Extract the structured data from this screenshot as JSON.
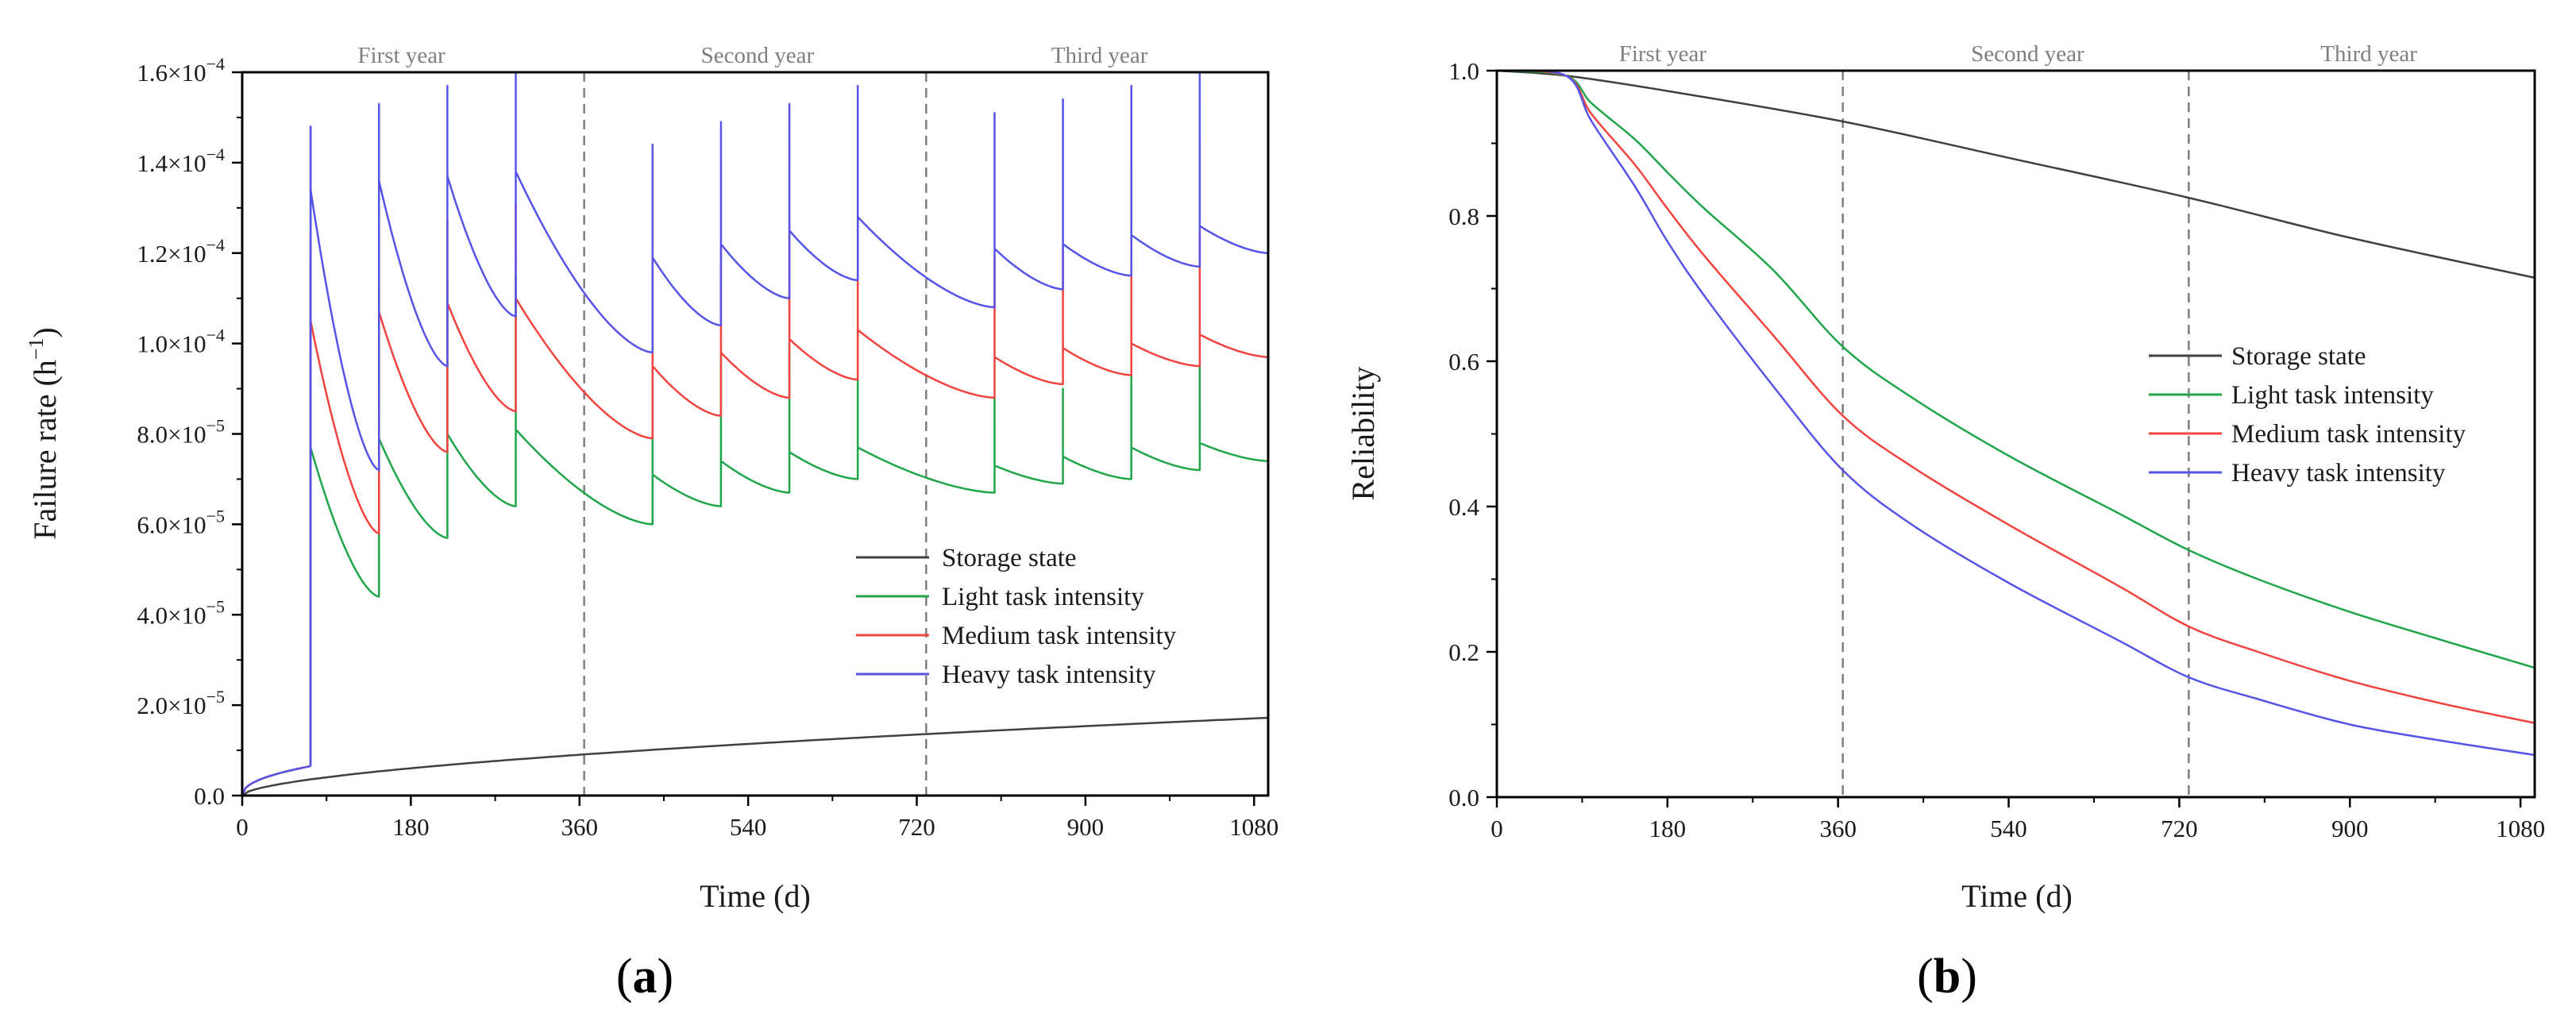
{
  "chart_data": [
    {
      "type": "line",
      "panel_label": {
        "open": "(",
        "letter": "a",
        "close": ")"
      },
      "xlabel": "Time (d)",
      "ylabel": "Failure rate (h",
      "ylabel_sup": "−1",
      "ylabel_close": ")",
      "xlim": [
        0,
        1095
      ],
      "ylim": [
        0,
        0.00016
      ],
      "xticks": [
        0,
        180,
        360,
        540,
        720,
        900,
        1080
      ],
      "xtick_labels": [
        "0",
        "180",
        "360",
        "540",
        "720",
        "900",
        "1080"
      ],
      "yticks": [
        0,
        2e-05,
        4e-05,
        6e-05,
        8e-05,
        0.0001,
        0.00012,
        0.00014,
        0.00016
      ],
      "ytick_labels": [
        {
          "mant": "0.0",
          "exp": ""
        },
        {
          "mant": "2.0×10",
          "exp": "−5"
        },
        {
          "mant": "4.0×10",
          "exp": "−5"
        },
        {
          "mant": "6.0×10",
          "exp": "−5"
        },
        {
          "mant": "8.0×10",
          "exp": "−5"
        },
        {
          "mant": "1.0×10",
          "exp": "−4"
        },
        {
          "mant": "1.2×10",
          "exp": "−4"
        },
        {
          "mant": "1.4×10",
          "exp": "−4"
        },
        {
          "mant": "1.6×10",
          "exp": "−4"
        }
      ],
      "year_lines": [
        365,
        730
      ],
      "year_labels": [
        {
          "text": "First year",
          "x": 170
        },
        {
          "text": "Second year",
          "x": 550
        },
        {
          "text": "Third year",
          "x": 915
        }
      ],
      "legend": {
        "position": "center-right",
        "entries": [
          "Storage state",
          "Light task intensity",
          "Medium task intensity",
          "Heavy task intensity"
        ]
      },
      "series": [
        {
          "name": "Storage state",
          "color": "#404040",
          "kind": "power",
          "points": [
            [
              0,
              0
            ],
            [
              75,
              6.5e-06
            ],
            [
              365,
              1.15e-05
            ],
            [
              730,
              1.48e-05
            ],
            [
              1095,
              1.72e-05
            ]
          ]
        },
        {
          "name": "Light task intensity",
          "color": "#1fa64a",
          "kind": "segments",
          "segments": [
            {
              "start": 73,
              "end": 146,
              "start_val": 7.7e-05,
              "end_val": 4.4e-05,
              "peak": 0.000118
            },
            {
              "start": 146,
              "end": 219,
              "start_val": 7.9e-05,
              "end_val": 5.7e-05,
              "peak": 0.000113
            },
            {
              "start": 219,
              "end": 292,
              "start_val": 8e-05,
              "end_val": 6.4e-05,
              "peak": 0.000114
            },
            {
              "start": 292,
              "end": 438,
              "start_val": 8.1e-05,
              "end_val": 6e-05,
              "peak": 0.000115
            },
            {
              "start": 438,
              "end": 511,
              "start_val": 7.1e-05,
              "end_val": 6.4e-05,
              "peak": 9.4e-05
            },
            {
              "start": 511,
              "end": 584,
              "start_val": 7.4e-05,
              "end_val": 6.7e-05,
              "peak": 9.7e-05
            },
            {
              "start": 584,
              "end": 657,
              "start_val": 7.6e-05,
              "end_val": 7e-05,
              "peak": 0.0001
            },
            {
              "start": 657,
              "end": 803,
              "start_val": 7.7e-05,
              "end_val": 6.7e-05,
              "peak": 0.000103
            },
            {
              "start": 803,
              "end": 876,
              "start_val": 7.3e-05,
              "end_val": 6.9e-05,
              "peak": 8.8e-05
            },
            {
              "start": 876,
              "end": 949,
              "start_val": 7.5e-05,
              "end_val": 7e-05,
              "peak": 9e-05
            },
            {
              "start": 949,
              "end": 1022,
              "start_val": 7.7e-05,
              "end_val": 7.2e-05,
              "peak": 9.3e-05
            },
            {
              "start": 1022,
              "end": 1095,
              "start_val": 7.8e-05,
              "end_val": 7.4e-05,
              "peak": 9.5e-05
            }
          ]
        },
        {
          "name": "Medium task intensity",
          "color": "#f2433f",
          "kind": "segments",
          "segments": [
            {
              "start": 73,
              "end": 146,
              "start_val": 0.000105,
              "end_val": 5.8e-05,
              "peak": 0.000123
            },
            {
              "start": 146,
              "end": 219,
              "start_val": 0.000107,
              "end_val": 7.6e-05,
              "peak": 0.000125
            },
            {
              "start": 219,
              "end": 292,
              "start_val": 0.000109,
              "end_val": 8.5e-05,
              "peak": 0.000127
            },
            {
              "start": 292,
              "end": 438,
              "start_val": 0.00011,
              "end_val": 7.9e-05,
              "peak": 0.000131
            },
            {
              "start": 438,
              "end": 511,
              "start_val": 9.5e-05,
              "end_val": 8.4e-05,
              "peak": 0.000119
            },
            {
              "start": 511,
              "end": 584,
              "start_val": 9.8e-05,
              "end_val": 8.8e-05,
              "peak": 0.000122
            },
            {
              "start": 584,
              "end": 657,
              "start_val": 0.000101,
              "end_val": 9.2e-05,
              "peak": 0.000126
            },
            {
              "start": 657,
              "end": 803,
              "start_val": 0.000103,
              "end_val": 8.8e-05,
              "peak": 0.000129
            },
            {
              "start": 803,
              "end": 876,
              "start_val": 9.7e-05,
              "end_val": 9.1e-05,
              "peak": 0.000119
            },
            {
              "start": 876,
              "end": 949,
              "start_val": 9.9e-05,
              "end_val": 9.3e-05,
              "peak": 0.000121
            },
            {
              "start": 949,
              "end": 1022,
              "start_val": 0.0001,
              "end_val": 9.5e-05,
              "peak": 0.000123
            },
            {
              "start": 1022,
              "end": 1095,
              "start_val": 0.000102,
              "end_val": 9.7e-05,
              "peak": 0.000125
            }
          ]
        },
        {
          "name": "Heavy task intensity",
          "color": "#5553e8",
          "kind": "segments",
          "segments": [
            {
              "start": 73,
              "end": 146,
              "start_val": 0.000134,
              "end_val": 7.2e-05,
              "peak": 0.000148
            },
            {
              "start": 146,
              "end": 219,
              "start_val": 0.000136,
              "end_val": 9.5e-05,
              "peak": 0.000153
            },
            {
              "start": 219,
              "end": 292,
              "start_val": 0.000137,
              "end_val": 0.000106,
              "peak": 0.000157
            },
            {
              "start": 292,
              "end": 438,
              "start_val": 0.000138,
              "end_val": 9.8e-05,
              "peak": 0.00016
            },
            {
              "start": 438,
              "end": 511,
              "start_val": 0.000119,
              "end_val": 0.000104,
              "peak": 0.000144
            },
            {
              "start": 511,
              "end": 584,
              "start_val": 0.000122,
              "end_val": 0.00011,
              "peak": 0.000149
            },
            {
              "start": 584,
              "end": 657,
              "start_val": 0.000125,
              "end_val": 0.000114,
              "peak": 0.000153
            },
            {
              "start": 657,
              "end": 803,
              "start_val": 0.000128,
              "end_val": 0.000108,
              "peak": 0.000157
            },
            {
              "start": 803,
              "end": 876,
              "start_val": 0.000121,
              "end_val": 0.000112,
              "peak": 0.000151
            },
            {
              "start": 876,
              "end": 949,
              "start_val": 0.000122,
              "end_val": 0.000115,
              "peak": 0.000154
            },
            {
              "start": 949,
              "end": 1022,
              "start_val": 0.000124,
              "end_val": 0.000117,
              "peak": 0.000157
            },
            {
              "start": 1022,
              "end": 1095,
              "start_val": 0.000126,
              "end_val": 0.00012,
              "peak": 0.00016
            }
          ]
        }
      ]
    },
    {
      "type": "line",
      "panel_label": {
        "open": "(",
        "letter": "b",
        "close": ")"
      },
      "xlabel": "Time (d)",
      "ylabel": "Reliability",
      "xlim": [
        0,
        1095
      ],
      "ylim": [
        0,
        1.0
      ],
      "xticks": [
        0,
        180,
        360,
        540,
        720,
        900,
        1080
      ],
      "xtick_labels": [
        "0",
        "180",
        "360",
        "540",
        "720",
        "900",
        "1080"
      ],
      "yticks": [
        0,
        0.2,
        0.4,
        0.6,
        0.8,
        1.0
      ],
      "ytick_labels": [
        "0.0",
        "0.2",
        "0.4",
        "0.6",
        "0.8",
        "1.0"
      ],
      "year_lines": [
        365,
        730
      ],
      "year_labels": [
        {
          "text": "First year",
          "x": 175
        },
        {
          "text": "Second year",
          "x": 560
        },
        {
          "text": "Third year",
          "x": 920
        }
      ],
      "legend": {
        "position": "center-right",
        "entries": [
          "Storage state",
          "Light task intensity",
          "Medium task intensity",
          "Heavy task intensity"
        ]
      },
      "series": [
        {
          "name": "Storage state",
          "color": "#404040",
          "points": [
            [
              0,
              1.0
            ],
            [
              73,
              0.993
            ],
            [
              180,
              0.972
            ],
            [
              365,
              0.93
            ],
            [
              540,
              0.88
            ],
            [
              730,
              0.825
            ],
            [
              900,
              0.77
            ],
            [
              1095,
              0.715
            ]
          ]
        },
        {
          "name": "Light task intensity",
          "color": "#1fa64a",
          "points": [
            [
              0,
              1.0
            ],
            [
              73,
              0.993
            ],
            [
              100,
              0.955
            ],
            [
              146,
              0.905
            ],
            [
              180,
              0.86
            ],
            [
              219,
              0.81
            ],
            [
              292,
              0.725
            ],
            [
              365,
              0.62
            ],
            [
              438,
              0.55
            ],
            [
              540,
              0.47
            ],
            [
              657,
              0.39
            ],
            [
              730,
              0.34
            ],
            [
              803,
              0.3
            ],
            [
              900,
              0.255
            ],
            [
              1000,
              0.215
            ],
            [
              1095,
              0.178
            ]
          ]
        },
        {
          "name": "Medium task intensity",
          "color": "#f2433f",
          "points": [
            [
              0,
              1.0
            ],
            [
              73,
              0.993
            ],
            [
              100,
              0.94
            ],
            [
              146,
              0.87
            ],
            [
              180,
              0.81
            ],
            [
              219,
              0.745
            ],
            [
              292,
              0.635
            ],
            [
              365,
              0.525
            ],
            [
              438,
              0.455
            ],
            [
              540,
              0.375
            ],
            [
              657,
              0.29
            ],
            [
              730,
              0.235
            ],
            [
              803,
              0.2
            ],
            [
              900,
              0.16
            ],
            [
              1000,
              0.128
            ],
            [
              1095,
              0.102
            ]
          ]
        },
        {
          "name": "Heavy task intensity",
          "color": "#5553e8",
          "points": [
            [
              0,
              1.0
            ],
            [
              73,
              0.993
            ],
            [
              100,
              0.93
            ],
            [
              146,
              0.84
            ],
            [
              180,
              0.765
            ],
            [
              219,
              0.69
            ],
            [
              292,
              0.565
            ],
            [
              365,
              0.45
            ],
            [
              438,
              0.375
            ],
            [
              540,
              0.295
            ],
            [
              657,
              0.215
            ],
            [
              730,
              0.165
            ],
            [
              803,
              0.135
            ],
            [
              900,
              0.1
            ],
            [
              1000,
              0.077
            ],
            [
              1095,
              0.058
            ]
          ]
        }
      ]
    }
  ]
}
